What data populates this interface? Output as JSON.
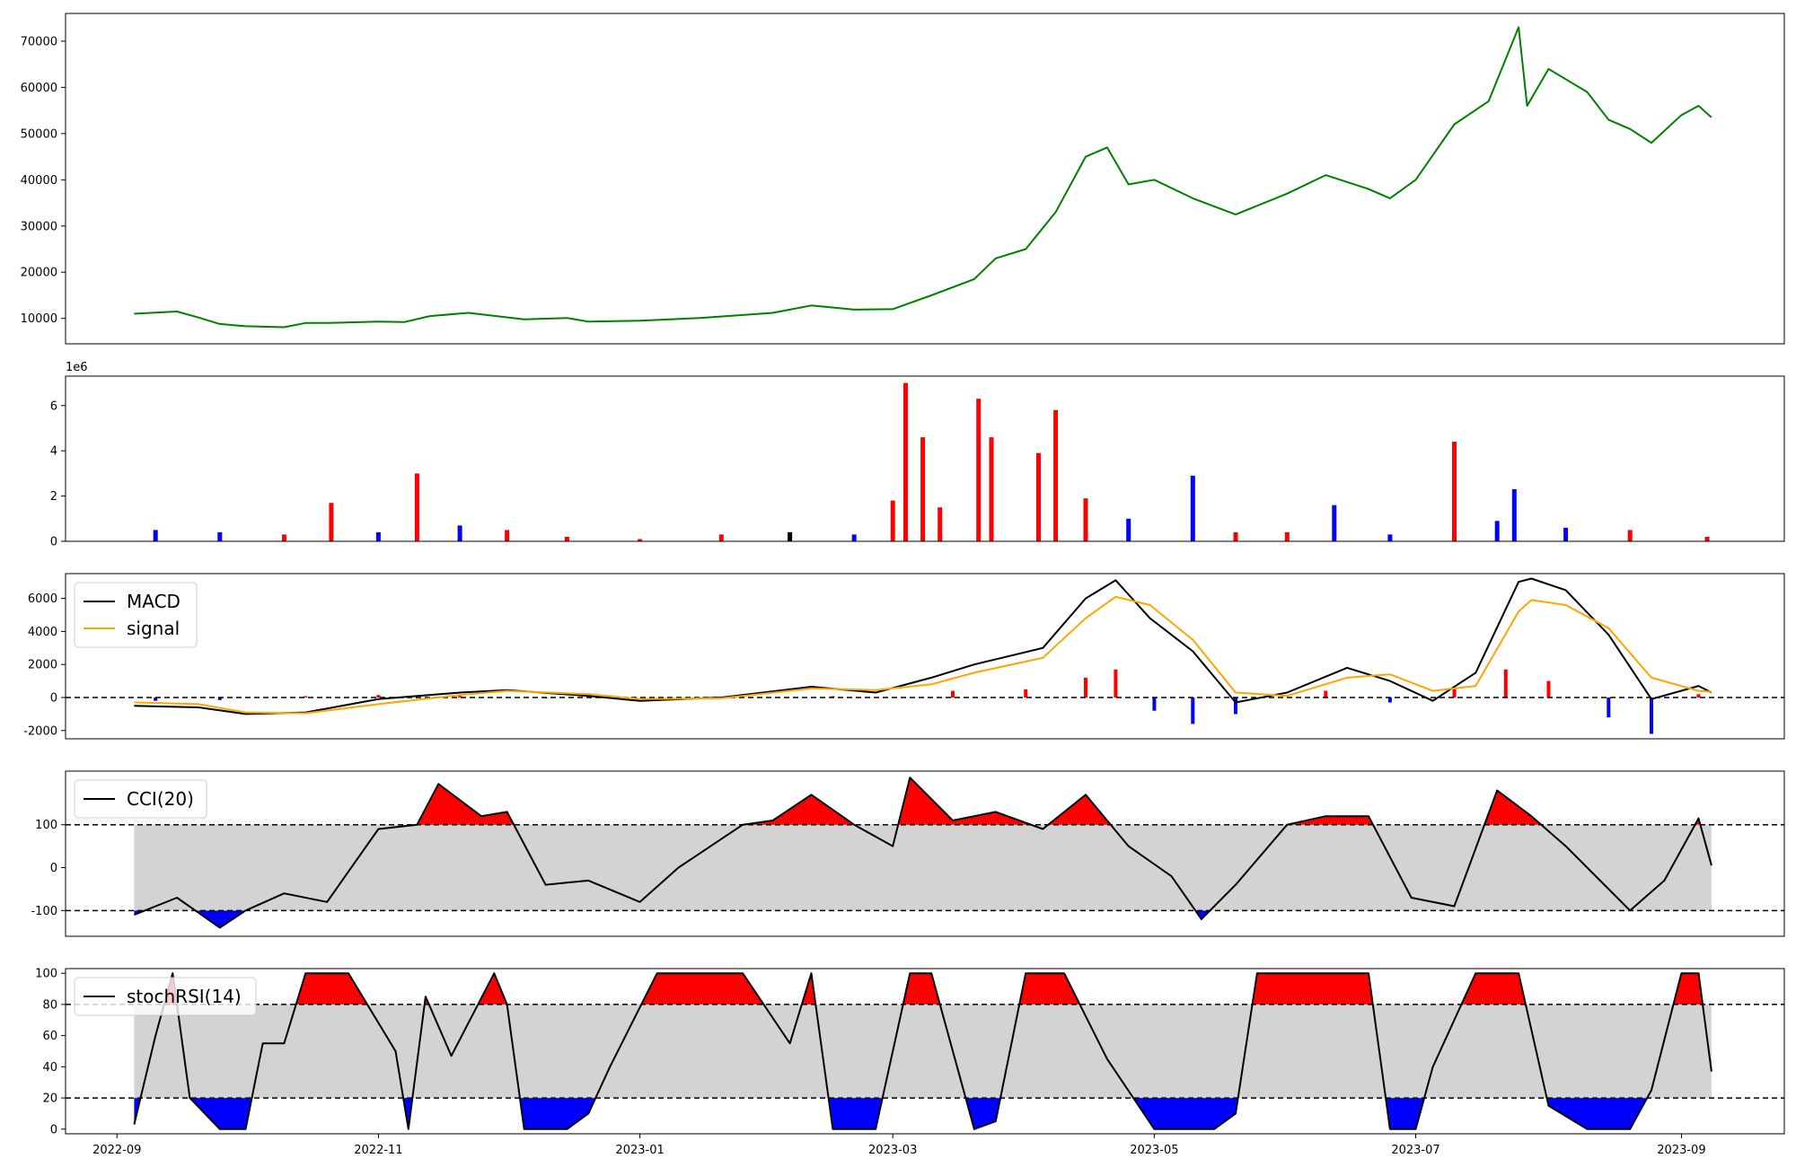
{
  "chart_data": [
    {
      "type": "line",
      "panel": "price",
      "x_range": [
        "2022-08-20",
        "2023-09-25"
      ],
      "ylim": [
        4500,
        76000
      ],
      "y_ticks": [
        10000,
        20000,
        30000,
        40000,
        50000,
        60000,
        70000
      ],
      "series": [
        {
          "color": "#008000",
          "x": [
            "2022-09-05",
            "2022-09-15",
            "2022-09-20",
            "2022-09-25",
            "2022-10-01",
            "2022-10-10",
            "2022-10-15",
            "2022-10-20",
            "2022-11-01",
            "2022-11-07",
            "2022-11-13",
            "2022-11-22",
            "2022-12-05",
            "2022-12-15",
            "2022-12-20",
            "2023-01-01",
            "2023-01-15",
            "2023-02-01",
            "2023-02-10",
            "2023-02-20",
            "2023-03-01",
            "2023-03-10",
            "2023-03-20",
            "2023-03-25",
            "2023-04-01",
            "2023-04-08",
            "2023-04-15",
            "2023-04-20",
            "2023-04-25",
            "2023-05-01",
            "2023-05-10",
            "2023-05-20",
            "2023-06-01",
            "2023-06-10",
            "2023-06-20",
            "2023-06-25",
            "2023-07-01",
            "2023-07-10",
            "2023-07-18",
            "2023-07-25",
            "2023-07-27",
            "2023-08-01",
            "2023-08-10",
            "2023-08-15",
            "2023-08-20",
            "2023-08-25",
            "2023-09-01",
            "2023-09-05",
            "2023-09-08"
          ],
          "y": [
            11000,
            11500,
            10200,
            8800,
            8300,
            8100,
            9000,
            9000,
            9300,
            9200,
            10500,
            11200,
            9800,
            10100,
            9300,
            9500,
            10100,
            11200,
            12800,
            11900,
            12000,
            15000,
            18500,
            23000,
            25000,
            33000,
            45000,
            47000,
            39000,
            40000,
            36000,
            32500,
            37000,
            41000,
            38000,
            36000,
            40000,
            52000,
            57000,
            73000,
            56000,
            64000,
            59000,
            53000,
            51000,
            48000,
            54000,
            56000,
            53500
          ]
        }
      ]
    },
    {
      "type": "bar",
      "panel": "volume",
      "scale_label": "1e6",
      "x_range": [
        "2022-08-20",
        "2023-09-25"
      ],
      "ylim": [
        0,
        7.3
      ],
      "y_ticks": [
        0,
        2,
        4,
        6
      ],
      "bar_colors": {
        "up": "#ff0000",
        "down": "#0000ff",
        "flat": "#000000"
      },
      "x": [
        "2022-09-10",
        "2022-09-25",
        "2022-10-10",
        "2022-10-21",
        "2022-11-01",
        "2022-11-10",
        "2022-11-20",
        "2022-12-01",
        "2022-12-15",
        "2023-01-01",
        "2023-01-20",
        "2023-02-05",
        "2023-02-20",
        "2023-03-01",
        "2023-03-04",
        "2023-03-08",
        "2023-03-12",
        "2023-03-21",
        "2023-03-24",
        "2023-04-04",
        "2023-04-08",
        "2023-04-15",
        "2023-04-25",
        "2023-05-10",
        "2023-05-20",
        "2023-06-01",
        "2023-06-12",
        "2023-06-25",
        "2023-07-10",
        "2023-07-20",
        "2023-07-24",
        "2023-08-05",
        "2023-08-20",
        "2023-09-07"
      ],
      "values": [
        0.5,
        0.4,
        0.3,
        1.7,
        0.4,
        3.0,
        0.7,
        0.5,
        0.2,
        0.1,
        0.3,
        0.4,
        0.3,
        1.8,
        7.0,
        4.6,
        1.5,
        6.3,
        4.6,
        3.9,
        5.8,
        1.9,
        1.0,
        2.9,
        0.4,
        0.4,
        1.6,
        0.3,
        4.4,
        0.9,
        2.3,
        0.6,
        0.5,
        0.2
      ],
      "direction": [
        "down",
        "down",
        "red",
        "up",
        "down",
        "up",
        "down",
        "up",
        "up",
        "up",
        "up",
        "flat",
        "down",
        "up",
        "up",
        "up",
        "up",
        "up",
        "up",
        "up",
        "up",
        "up",
        "down",
        "down",
        "up",
        "up",
        "down",
        "down",
        "up",
        "down",
        "down",
        "down",
        "up",
        "up"
      ]
    },
    {
      "type": "line",
      "panel": "macd",
      "x_range": [
        "2022-08-20",
        "2023-09-25"
      ],
      "ylim": [
        -2500,
        7500
      ],
      "y_ticks": [
        -2000,
        0,
        2000,
        4000,
        6000
      ],
      "zero_line": 0,
      "legend": [
        "MACD",
        "signal"
      ],
      "legend_position": "upper-left",
      "series": [
        {
          "name": "MACD",
          "color": "#000000",
          "x": [
            "2022-09-05",
            "2022-09-20",
            "2022-10-01",
            "2022-10-15",
            "2022-11-01",
            "2022-11-20",
            "2022-12-01",
            "2022-12-20",
            "2023-01-01",
            "2023-01-20",
            "2023-02-10",
            "2023-02-25",
            "2023-03-10",
            "2023-03-20",
            "2023-04-05",
            "2023-04-15",
            "2023-04-22",
            "2023-04-30",
            "2023-05-10",
            "2023-05-20",
            "2023-06-01",
            "2023-06-15",
            "2023-06-25",
            "2023-07-05",
            "2023-07-15",
            "2023-07-25",
            "2023-07-28",
            "2023-08-05",
            "2023-08-15",
            "2023-08-25",
            "2023-09-05",
            "2023-09-08"
          ],
          "y": [
            -500,
            -600,
            -1000,
            -900,
            -100,
            300,
            450,
            100,
            -200,
            0,
            650,
            300,
            1200,
            2000,
            3000,
            6000,
            7100,
            4800,
            2800,
            -300,
            300,
            1800,
            1000,
            -200,
            1500,
            7000,
            7200,
            6500,
            3800,
            -100,
            700,
            300
          ]
        },
        {
          "name": "signal",
          "color": "#ffa500",
          "x": [
            "2022-09-05",
            "2022-09-20",
            "2022-10-01",
            "2022-10-15",
            "2022-11-01",
            "2022-11-20",
            "2022-12-01",
            "2022-12-20",
            "2023-01-01",
            "2023-01-20",
            "2023-02-10",
            "2023-02-25",
            "2023-03-10",
            "2023-03-20",
            "2023-04-05",
            "2023-04-15",
            "2023-04-22",
            "2023-04-30",
            "2023-05-10",
            "2023-05-20",
            "2023-06-01",
            "2023-06-15",
            "2023-06-25",
            "2023-07-05",
            "2023-07-15",
            "2023-07-25",
            "2023-07-28",
            "2023-08-05",
            "2023-08-15",
            "2023-08-25",
            "2023-09-05",
            "2023-09-08"
          ],
          "y": [
            -300,
            -400,
            -900,
            -950,
            -400,
            150,
            400,
            200,
            -100,
            -50,
            550,
            450,
            800,
            1500,
            2400,
            4800,
            6100,
            5600,
            3500,
            300,
            100,
            1200,
            1400,
            400,
            700,
            5200,
            5900,
            5600,
            4200,
            1200,
            400,
            350
          ]
        }
      ],
      "histogram": {
        "up_color": "#ff0000",
        "down_color": "#0000ff",
        "x": [
          "2022-09-10",
          "2022-09-25",
          "2022-10-15",
          "2022-11-01",
          "2022-11-20",
          "2022-12-10",
          "2023-01-10",
          "2023-02-15",
          "2023-03-15",
          "2023-04-01",
          "2023-04-15",
          "2023-04-22",
          "2023-05-01",
          "2023-05-10",
          "2023-05-20",
          "2023-06-10",
          "2023-06-25",
          "2023-07-10",
          "2023-07-22",
          "2023-08-01",
          "2023-08-15",
          "2023-08-25",
          "2023-09-05"
        ],
        "values": [
          -200,
          -150,
          80,
          150,
          100,
          -50,
          30,
          80,
          400,
          500,
          1200,
          1700,
          -800,
          -1600,
          -1000,
          400,
          -300,
          500,
          1700,
          1000,
          -1200,
          -2200,
          200
        ]
      }
    },
    {
      "type": "area",
      "panel": "cci",
      "x_range": [
        "2022-08-20",
        "2023-09-25"
      ],
      "ylim": [
        -160,
        225
      ],
      "y_ticks": [
        -100,
        0,
        100
      ],
      "thresholds": [
        -100,
        100
      ],
      "band_color": "#d3d3d3",
      "above_color": "#ff0000",
      "below_color": "#0000ff",
      "legend": [
        "CCI(20)"
      ],
      "legend_position": "upper-left",
      "series": [
        {
          "name": "CCI(20)",
          "color": "#000000",
          "x": [
            "2022-09-05",
            "2022-09-15",
            "2022-09-25",
            "2022-10-01",
            "2022-10-10",
            "2022-10-20",
            "2022-11-01",
            "2022-11-10",
            "2022-11-15",
            "2022-11-25",
            "2022-12-01",
            "2022-12-10",
            "2022-12-20",
            "2023-01-01",
            "2023-01-10",
            "2023-01-25",
            "2023-02-01",
            "2023-02-10",
            "2023-02-20",
            "2023-03-01",
            "2023-03-05",
            "2023-03-15",
            "2023-03-25",
            "2023-04-05",
            "2023-04-15",
            "2023-04-25",
            "2023-05-05",
            "2023-05-12",
            "2023-05-20",
            "2023-06-01",
            "2023-06-10",
            "2023-06-20",
            "2023-06-30",
            "2023-07-10",
            "2023-07-20",
            "2023-07-28",
            "2023-08-05",
            "2023-08-20",
            "2023-08-28",
            "2023-09-05",
            "2023-09-08"
          ],
          "y": [
            -110,
            -70,
            -140,
            -100,
            -60,
            -80,
            90,
            100,
            195,
            120,
            130,
            -40,
            -30,
            -80,
            0,
            100,
            110,
            170,
            100,
            50,
            210,
            110,
            130,
            90,
            170,
            50,
            -20,
            -120,
            -40,
            100,
            120,
            120,
            -70,
            -90,
            180,
            120,
            50,
            -100,
            -30,
            115,
            5
          ]
        }
      ]
    },
    {
      "type": "area",
      "panel": "stochrsi",
      "x_range": [
        "2022-08-20",
        "2023-09-25"
      ],
      "ylim": [
        -3,
        103
      ],
      "y_ticks": [
        0,
        20,
        40,
        60,
        80,
        100
      ],
      "thresholds": [
        20,
        80
      ],
      "band_color": "#d3d3d3",
      "above_color": "#ff0000",
      "below_color": "#0000ff",
      "legend": [
        "stochRSI(14)"
      ],
      "legend_position": "upper-left",
      "x_tick_labels": [
        "2022-09",
        "2022-11",
        "2023-01",
        "2023-03",
        "2023-05",
        "2023-07",
        "2023-09"
      ],
      "series": [
        {
          "name": "stochRSI(14)",
          "color": "#000000",
          "x": [
            "2022-09-05",
            "2022-09-10",
            "2022-09-14",
            "2022-09-18",
            "2022-09-25",
            "2022-10-01",
            "2022-10-05",
            "2022-10-10",
            "2022-10-15",
            "2022-10-25",
            "2022-11-05",
            "2022-11-08",
            "2022-11-12",
            "2022-11-18",
            "2022-11-28",
            "2022-12-01",
            "2022-12-05",
            "2022-12-15",
            "2022-12-20",
            "2022-12-25",
            "2023-01-05",
            "2023-01-15",
            "2023-01-25",
            "2023-02-05",
            "2023-02-10",
            "2023-02-15",
            "2023-02-25",
            "2023-03-05",
            "2023-03-10",
            "2023-03-20",
            "2023-03-25",
            "2023-04-01",
            "2023-04-10",
            "2023-04-20",
            "2023-05-01",
            "2023-05-15",
            "2023-05-20",
            "2023-05-25",
            "2023-06-10",
            "2023-06-20",
            "2023-06-25",
            "2023-07-01",
            "2023-07-05",
            "2023-07-15",
            "2023-07-25",
            "2023-08-01",
            "2023-08-10",
            "2023-08-20",
            "2023-08-25",
            "2023-09-01",
            "2023-09-05",
            "2023-09-08"
          ],
          "y": [
            3,
            60,
            100,
            20,
            0,
            0,
            55,
            55,
            100,
            100,
            50,
            0,
            85,
            47,
            100,
            80,
            0,
            0,
            10,
            40,
            100,
            100,
            100,
            55,
            100,
            0,
            0,
            100,
            100,
            0,
            5,
            100,
            100,
            45,
            0,
            0,
            10,
            100,
            100,
            100,
            0,
            0,
            40,
            100,
            100,
            15,
            0,
            0,
            25,
            100,
            100,
            37
          ]
        }
      ]
    }
  ]
}
